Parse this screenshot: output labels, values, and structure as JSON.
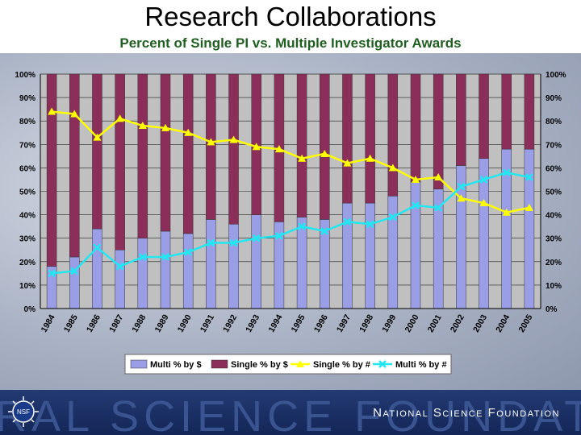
{
  "title": "Research Collaborations",
  "subtitle": "Percent of Single PI vs. Multiple Investigator Awards",
  "footer": {
    "org_name": "National Science Foundation",
    "watermark": "RAL SCIENCE FOUNDATION",
    "logo_text": "NSF"
  },
  "colors": {
    "multi_bar": "#9a9ee6",
    "single_bar": "#8b2f5a",
    "single_line": "#ffff00",
    "multi_line": "#22e6f0"
  },
  "chart_data": {
    "type": "bar",
    "stacked": true,
    "categories": [
      "1984",
      "1985",
      "1986",
      "1987",
      "1988",
      "1989",
      "1990",
      "1991",
      "1992",
      "1993",
      "1994",
      "1995",
      "1996",
      "1997",
      "1998",
      "1999",
      "2000",
      "2001",
      "2002",
      "2003",
      "2004",
      "2005"
    ],
    "ylim": [
      0,
      100
    ],
    "yticks": [
      "0%",
      "10%",
      "20%",
      "30%",
      "40%",
      "50%",
      "60%",
      "70%",
      "80%",
      "90%",
      "100%"
    ],
    "series": [
      {
        "name": "Multi % by $",
        "kind": "bar",
        "values": [
          18,
          22,
          34,
          25,
          30,
          33,
          32,
          38,
          36,
          40,
          37,
          39,
          38,
          45,
          45,
          48,
          54,
          51,
          61,
          64,
          68,
          68
        ]
      },
      {
        "name": "Single % by $",
        "kind": "bar",
        "values": [
          82,
          78,
          66,
          75,
          70,
          67,
          68,
          62,
          64,
          60,
          63,
          61,
          62,
          55,
          55,
          52,
          46,
          49,
          39,
          36,
          32,
          32
        ]
      },
      {
        "name": "Single % by #",
        "kind": "line",
        "values": [
          84,
          83,
          73,
          81,
          78,
          77,
          75,
          71,
          72,
          69,
          68,
          64,
          66,
          62,
          64,
          60,
          55,
          56,
          47,
          45,
          41,
          43
        ]
      },
      {
        "name": "Multi % by #",
        "kind": "line",
        "values": [
          15,
          16,
          26,
          18,
          22,
          22,
          24,
          28,
          28,
          30,
          31,
          35,
          33,
          37,
          36,
          39,
          44,
          43,
          52,
          55,
          58,
          56
        ]
      }
    ],
    "grid": true,
    "legend_position": "bottom"
  }
}
